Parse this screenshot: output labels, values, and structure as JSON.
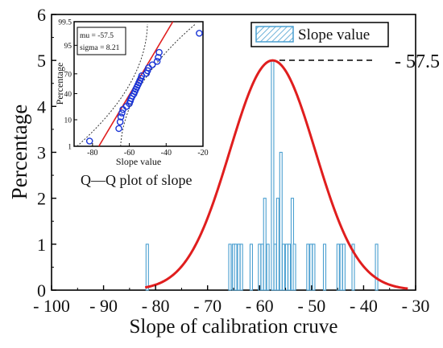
{
  "chart_data": [
    {
      "type": "bar",
      "title": "",
      "xlabel": "Slope of calibration cruve",
      "ylabel": "Percentage",
      "xlim": [
        -100,
        -30
      ],
      "ylim": [
        0,
        6
      ],
      "x_ticks": [
        -100,
        -90,
        -80,
        -70,
        -60,
        -50,
        -40,
        -30
      ],
      "x_tick_labels": [
        "- 100",
        "- 90",
        "- 80",
        "- 70",
        "- 60",
        "- 50",
        "- 40",
        "- 30"
      ],
      "y_ticks": [
        0,
        1,
        2,
        3,
        4,
        5,
        6
      ],
      "y_tick_labels": [
        "0",
        "1",
        "2",
        "3",
        "4",
        "5",
        "6"
      ],
      "legend": {
        "position": "top-right",
        "label": "Slope value"
      },
      "annotation": "- 57.5",
      "series": [
        {
          "name": "Slope value",
          "kind": "bars",
          "color": "#4a9fd0",
          "values": [
            {
              "x": -81.6,
              "y": 1
            },
            {
              "x": -65.7,
              "y": 1
            },
            {
              "x": -65.0,
              "y": 1
            },
            {
              "x": -64.6,
              "y": 1
            },
            {
              "x": -64.0,
              "y": 1
            },
            {
              "x": -63.5,
              "y": 1
            },
            {
              "x": -61.6,
              "y": 1
            },
            {
              "x": -60.0,
              "y": 1
            },
            {
              "x": -59.5,
              "y": 1
            },
            {
              "x": -59.0,
              "y": 2
            },
            {
              "x": -58.4,
              "y": 1
            },
            {
              "x": -57.5,
              "y": 5
            },
            {
              "x": -57.0,
              "y": 1
            },
            {
              "x": -56.5,
              "y": 2
            },
            {
              "x": -55.9,
              "y": 3
            },
            {
              "x": -55.4,
              "y": 1
            },
            {
              "x": -54.8,
              "y": 1
            },
            {
              "x": -54.3,
              "y": 1
            },
            {
              "x": -53.7,
              "y": 2
            },
            {
              "x": -53.3,
              "y": 1
            },
            {
              "x": -50.7,
              "y": 1
            },
            {
              "x": -50.1,
              "y": 1
            },
            {
              "x": -49.6,
              "y": 1
            },
            {
              "x": -47.5,
              "y": 1
            },
            {
              "x": -44.9,
              "y": 1
            },
            {
              "x": -44.3,
              "y": 1
            },
            {
              "x": -43.8,
              "y": 1
            },
            {
              "x": -42.0,
              "y": 1
            },
            {
              "x": -37.5,
              "y": 1
            }
          ]
        },
        {
          "name": "",
          "kind": "normal-curve",
          "color": "#e01e1e",
          "mu": -57.5,
          "sigma": 8.21,
          "peak": 5,
          "x_range": [
            -82,
            -31.5
          ]
        }
      ]
    },
    {
      "type": "scatter",
      "title": "Q—Q plot of slope",
      "xlabel": "Slope value",
      "ylabel": "Percentage",
      "xlim": [
        -90,
        -20
      ],
      "x_ticks": [
        -80,
        -60,
        -40,
        -20
      ],
      "x_tick_labels": [
        "-80",
        "-60",
        "-40",
        "-20"
      ],
      "y_scale": "probability",
      "y_ticks": [
        1,
        10,
        40,
        70,
        95,
        99.5
      ],
      "y_tick_labels": [
        "1",
        "10",
        "40",
        "70",
        "95",
        "99.5"
      ],
      "stats": [
        "mu = -57.5",
        "sigma = 8.21"
      ],
      "series": [
        {
          "name": "",
          "kind": "points",
          "color": "#1a35d6",
          "values": [
            {
              "x": -81.6,
              "y": 1.7
            },
            {
              "x": -65.7,
              "y": 5.2
            },
            {
              "x": -65.0,
              "y": 8.6
            },
            {
              "x": -64.6,
              "y": 12.1
            },
            {
              "x": -64.0,
              "y": 15.5
            },
            {
              "x": -63.5,
              "y": 19.0
            },
            {
              "x": -61.6,
              "y": 22.4
            },
            {
              "x": -60.0,
              "y": 25.9
            },
            {
              "x": -59.5,
              "y": 29.3
            },
            {
              "x": -59.0,
              "y": 32.8
            },
            {
              "x": -58.4,
              "y": 36.2
            },
            {
              "x": -57.5,
              "y": 39.7
            },
            {
              "x": -57.0,
              "y": 43.1
            },
            {
              "x": -56.5,
              "y": 46.6
            },
            {
              "x": -55.9,
              "y": 50.0
            },
            {
              "x": -55.4,
              "y": 53.4
            },
            {
              "x": -54.8,
              "y": 56.9
            },
            {
              "x": -54.3,
              "y": 60.3
            },
            {
              "x": -53.7,
              "y": 63.8
            },
            {
              "x": -53.3,
              "y": 67.2
            },
            {
              "x": -50.7,
              "y": 70.7
            },
            {
              "x": -50.1,
              "y": 74.1
            },
            {
              "x": -49.6,
              "y": 77.6
            },
            {
              "x": -47.5,
              "y": 81.0
            },
            {
              "x": -44.9,
              "y": 84.5
            },
            {
              "x": -44.3,
              "y": 87.9
            },
            {
              "x": -43.8,
              "y": 91.4
            },
            {
              "x": -22.0,
              "y": 98.3
            }
          ]
        },
        {
          "name": "",
          "kind": "fit-line",
          "color": "#e01e1e"
        },
        {
          "name": "",
          "kind": "confidence-band",
          "color": "#333333"
        }
      ]
    }
  ]
}
